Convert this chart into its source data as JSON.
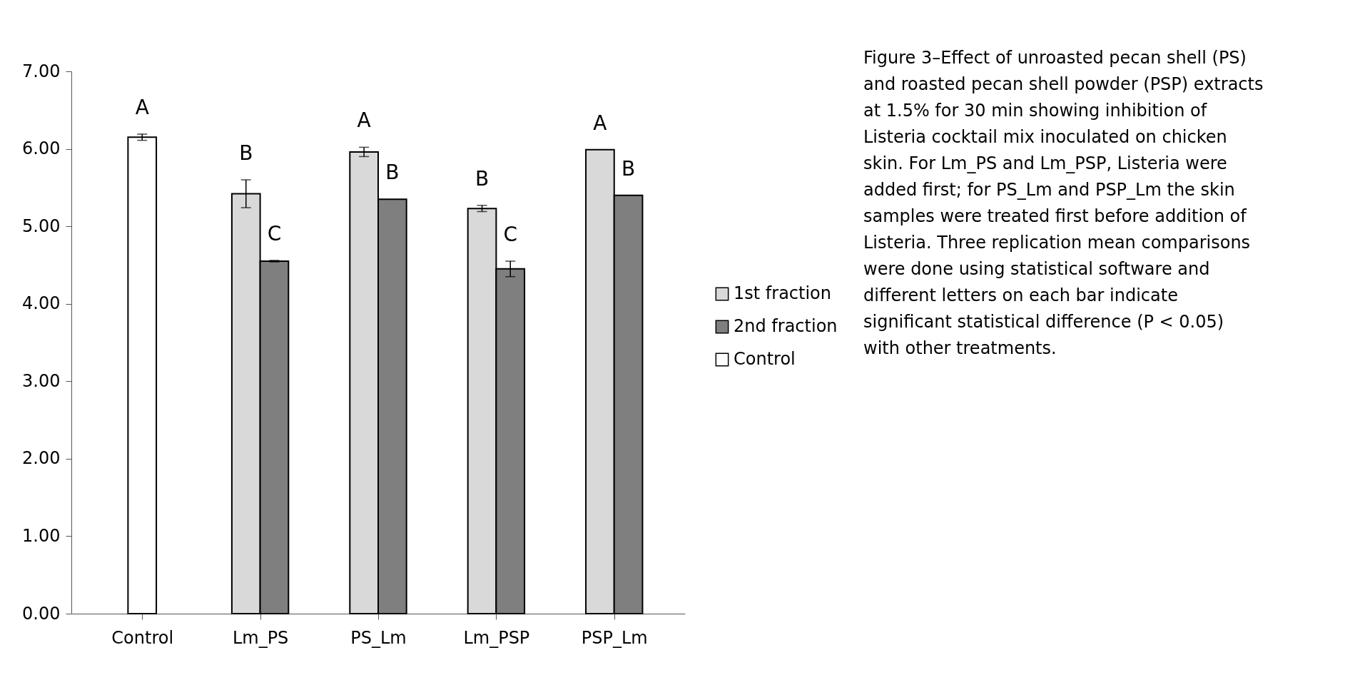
{
  "chart_data": {
    "type": "bar",
    "categories": [
      "Control",
      "Lm_PS",
      "PS_Lm",
      "Lm_PSP",
      "PSP_Lm"
    ],
    "series": [
      {
        "name": "1st fraction",
        "color": "#d9d9d9",
        "values": [
          null,
          5.42,
          5.96,
          5.23,
          5.99
        ],
        "errors": [
          null,
          0.18,
          0.06,
          0.04,
          null
        ],
        "value_labels": [
          null,
          "B",
          "A",
          "B",
          "A"
        ]
      },
      {
        "name": "2nd fraction",
        "color": "#7f7f7f",
        "values": [
          null,
          4.55,
          5.35,
          4.45,
          5.4
        ],
        "errors": [
          null,
          0.01,
          null,
          0.1,
          null
        ],
        "value_labels": [
          null,
          "C",
          "B",
          "C",
          "B"
        ]
      },
      {
        "name": "Control",
        "color": "#ffffff",
        "values": [
          6.15,
          null,
          null,
          null,
          null
        ],
        "errors": [
          0.04,
          null,
          null,
          null,
          null
        ],
        "value_labels": [
          "A",
          null,
          null,
          null,
          null
        ]
      }
    ],
    "ylim": [
      0,
      7
    ],
    "yticks": [
      {
        "value": 0,
        "label": "0.00"
      },
      {
        "value": 1,
        "label": "1.00"
      },
      {
        "value": 2,
        "label": "2.00"
      },
      {
        "value": 3,
        "label": "3.00"
      },
      {
        "value": 4,
        "label": "4.00"
      },
      {
        "value": 5,
        "label": "5.00"
      },
      {
        "value": 6,
        "label": "6.00"
      },
      {
        "value": 7,
        "label": "7.00"
      }
    ],
    "grid": false,
    "legend": "right",
    "annotations": [
      "Figure 3–Effect of unroasted pecan shell (PS) and roasted pecan shell powder (PSP) extracts at 1.5% for 30 min showing inhibition of Listeria cocktail mix inoculated on chicken skin. For Lm_PS and Lm_PSP, Listeria were added first; for PS_Lm and PSP_Lm the skin samples were treated first before addition of Listeria. Three replication mean comparisons were done using statistical software and different letters on each bar indicate significant statistical difference (P < 0.05) with other treatments."
    ]
  }
}
